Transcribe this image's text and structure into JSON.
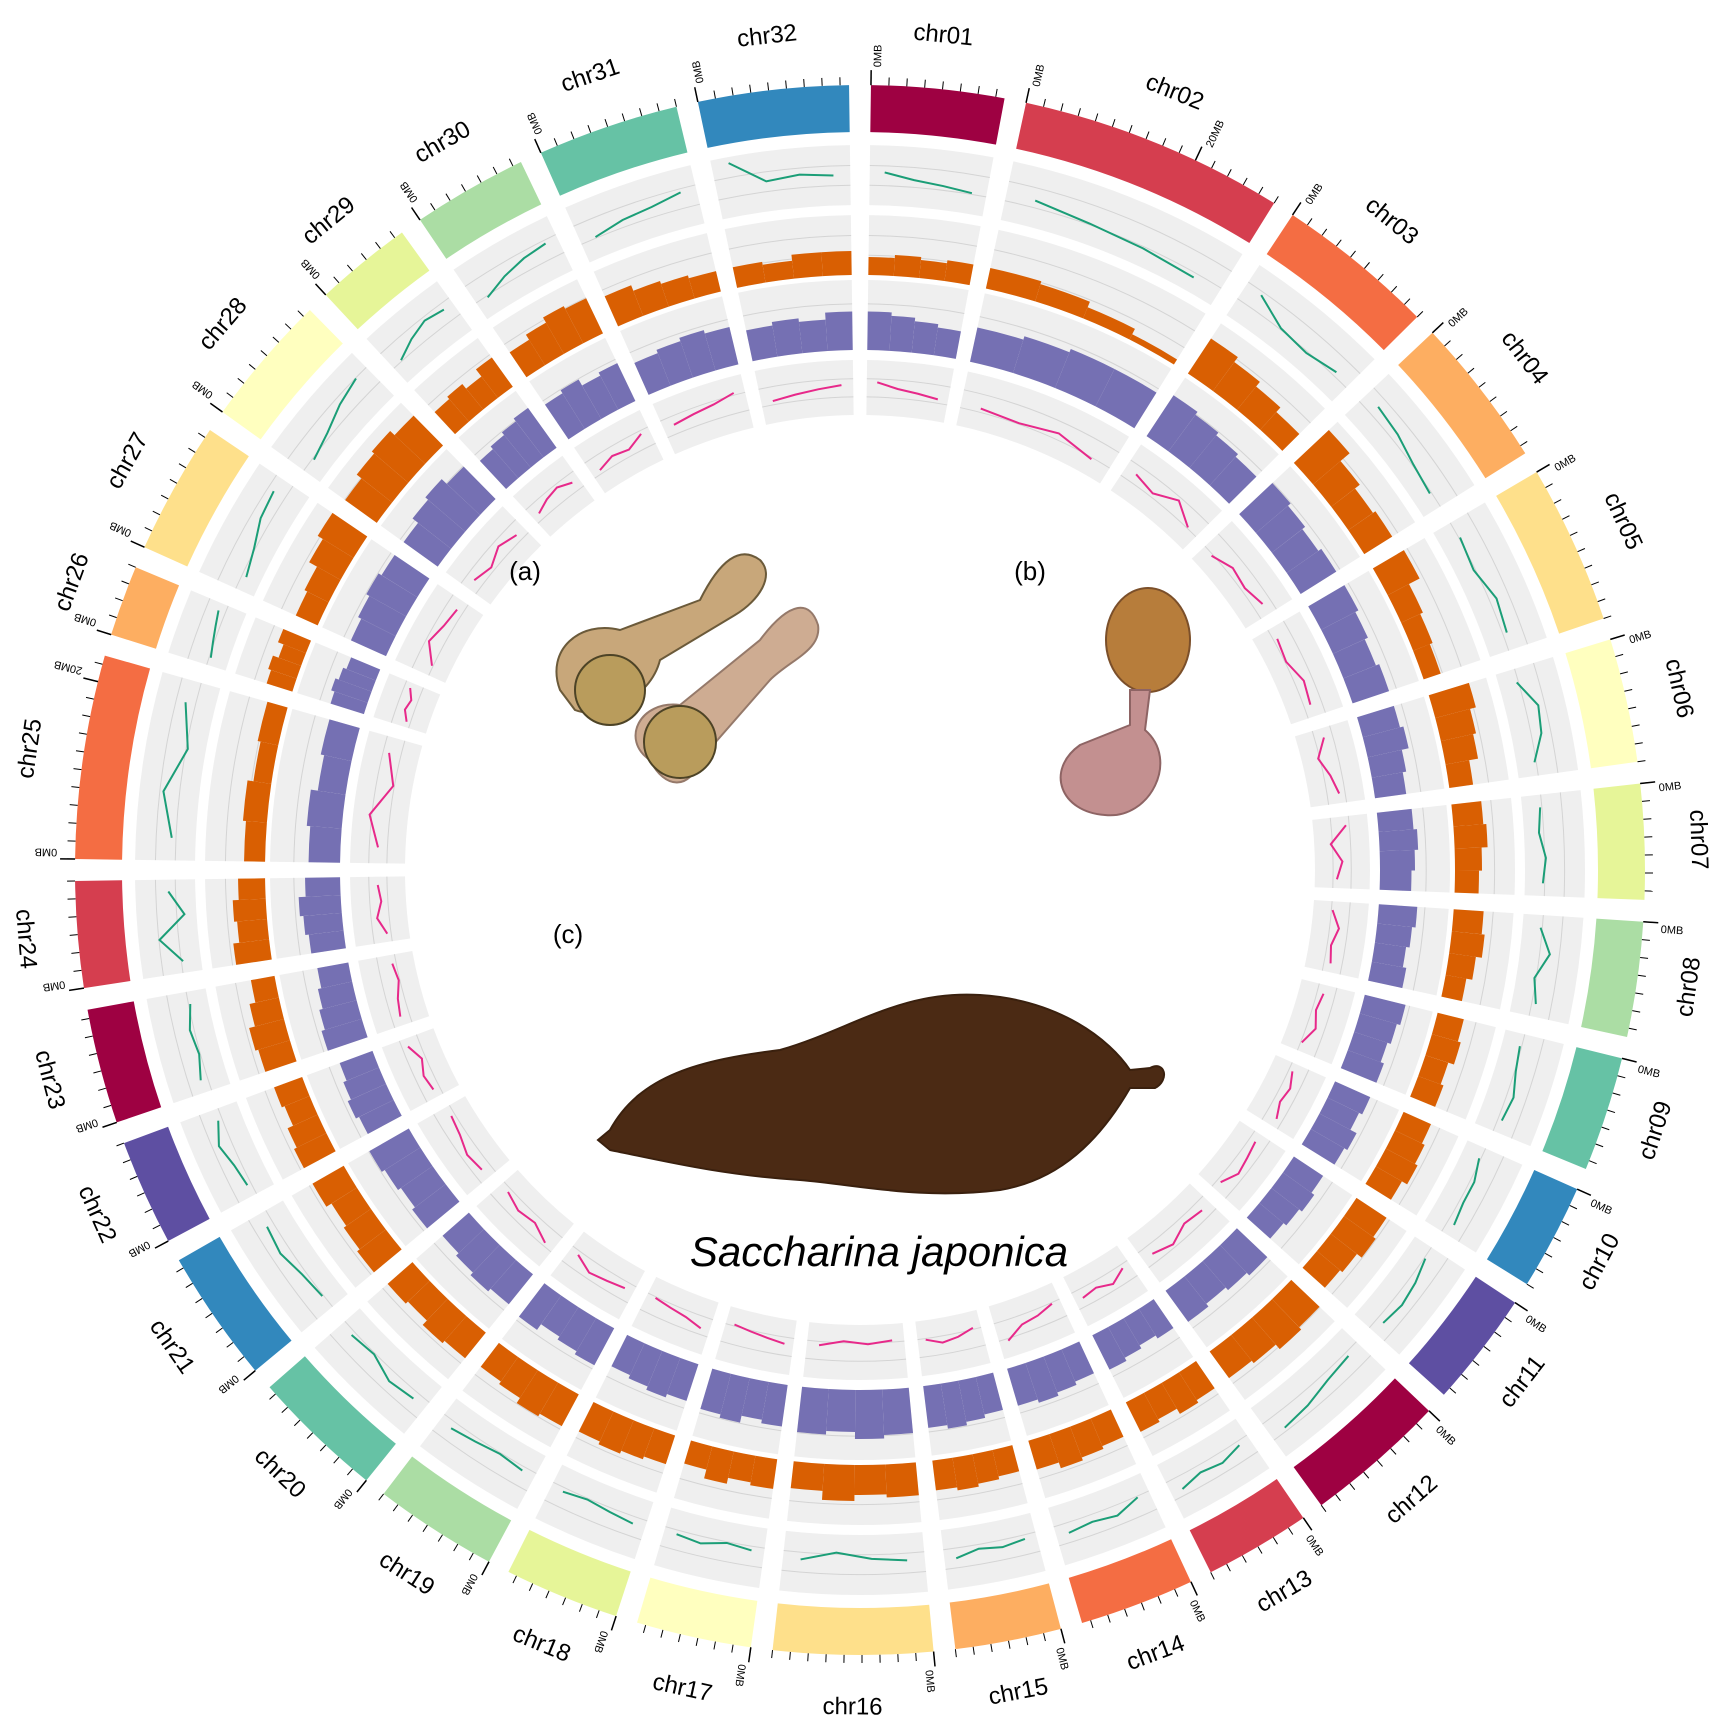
{
  "chart_data": {
    "type": "circos",
    "title": "Saccharina japonica",
    "annotations": [
      "(a)",
      "(b)",
      "(c)"
    ],
    "minor_tick_step": 2,
    "chromosomes": [
      {
        "name": "chr01",
        "length": 15,
        "color": "#9e0142",
        "ticks": [
          {
            "value": 0,
            "label": "0MB"
          }
        ]
      },
      {
        "name": "chr02",
        "length": 30,
        "color": "#d53e4f",
        "ticks": [
          {
            "value": 0,
            "label": "0MB"
          },
          {
            "value": 20,
            "label": "20MB"
          }
        ]
      },
      {
        "name": "chr03",
        "length": 18,
        "color": "#f46d43",
        "ticks": [
          {
            "value": 0,
            "label": "0MB"
          }
        ]
      },
      {
        "name": "chr04",
        "length": 17,
        "color": "#fdae61",
        "ticks": [
          {
            "value": 0,
            "label": "0MB"
          }
        ]
      },
      {
        "name": "chr05",
        "length": 18,
        "color": "#fee08b",
        "ticks": [
          {
            "value": 0,
            "label": "0MB"
          }
        ]
      },
      {
        "name": "chr06",
        "length": 14,
        "color": "#ffffbf",
        "ticks": [
          {
            "value": 0,
            "label": "0MB"
          }
        ]
      },
      {
        "name": "chr07",
        "length": 13,
        "color": "#e6f598",
        "ticks": [
          {
            "value": 0,
            "label": "0MB"
          }
        ]
      },
      {
        "name": "chr08",
        "length": 13,
        "color": "#abdda4",
        "ticks": [
          {
            "value": 0,
            "label": "0MB"
          }
        ]
      },
      {
        "name": "chr09",
        "length": 13,
        "color": "#66c2a5",
        "ticks": [
          {
            "value": 0,
            "label": "0MB"
          }
        ]
      },
      {
        "name": "chr10",
        "length": 12,
        "color": "#3288bd",
        "ticks": [
          {
            "value": 0,
            "label": "0MB"
          }
        ]
      },
      {
        "name": "chr11",
        "length": 13,
        "color": "#5e4fa2",
        "ticks": [
          {
            "value": 0,
            "label": "0MB"
          }
        ]
      },
      {
        "name": "chr12",
        "length": 16,
        "color": "#9e0142",
        "ticks": [
          {
            "value": 0,
            "label": "0MB"
          }
        ]
      },
      {
        "name": "chr13",
        "length": 12,
        "color": "#d53e4f",
        "ticks": [
          {
            "value": 0,
            "label": "0MB"
          }
        ]
      },
      {
        "name": "chr14",
        "length": 13,
        "color": "#f46d43",
        "ticks": [
          {
            "value": 0,
            "label": "0MB"
          }
        ]
      },
      {
        "name": "chr15",
        "length": 12,
        "color": "#fdae61",
        "ticks": [
          {
            "value": 0,
            "label": "0MB"
          }
        ]
      },
      {
        "name": "chr16",
        "length": 18,
        "color": "#fee08b",
        "ticks": [
          {
            "value": 0,
            "label": "0MB"
          }
        ]
      },
      {
        "name": "chr17",
        "length": 13,
        "color": "#ffffbf",
        "ticks": [
          {
            "value": 0,
            "label": "0MB"
          }
        ]
      },
      {
        "name": "chr18",
        "length": 13,
        "color": "#e6f598",
        "ticks": [
          {
            "value": 0,
            "label": "0MB"
          }
        ]
      },
      {
        "name": "chr19",
        "length": 14,
        "color": "#abdda4",
        "ticks": [
          {
            "value": 0,
            "label": "0MB"
          }
        ]
      },
      {
        "name": "chr20",
        "length": 15,
        "color": "#66c2a5",
        "ticks": [
          {
            "value": 0,
            "label": "0MB"
          }
        ]
      },
      {
        "name": "chr21",
        "length": 15,
        "color": "#3288bd",
        "ticks": [
          {
            "value": 0,
            "label": "0MB"
          }
        ]
      },
      {
        "name": "chr22",
        "length": 12,
        "color": "#5e4fa2",
        "ticks": [
          {
            "value": 0,
            "label": "0MB"
          }
        ]
      },
      {
        "name": "chr23",
        "length": 13,
        "color": "#9e0142",
        "ticks": [
          {
            "value": 0,
            "label": "0MB"
          }
        ]
      },
      {
        "name": "chr24",
        "length": 12,
        "color": "#d53e4f",
        "ticks": [
          {
            "value": 0,
            "label": "0MB"
          }
        ]
      },
      {
        "name": "chr25",
        "length": 23,
        "color": "#f46d43",
        "ticks": [
          {
            "value": 0,
            "label": "0MB"
          },
          {
            "value": 20,
            "label": "20MB"
          }
        ]
      },
      {
        "name": "chr26",
        "length": 8,
        "color": "#fdae61",
        "ticks": [
          {
            "value": 0,
            "label": "0MB"
          }
        ]
      },
      {
        "name": "chr27",
        "length": 15,
        "color": "#fee08b",
        "ticks": [
          {
            "value": 0,
            "label": "0MB"
          }
        ]
      },
      {
        "name": "chr28",
        "length": 15,
        "color": "#ffffbf",
        "ticks": [
          {
            "value": 0,
            "label": "0MB"
          }
        ]
      },
      {
        "name": "chr29",
        "length": 11,
        "color": "#e6f598",
        "ticks": [
          {
            "value": 0,
            "label": "0MB"
          }
        ]
      },
      {
        "name": "chr30",
        "length": 13,
        "color": "#abdda4",
        "ticks": [
          {
            "value": 0,
            "label": "0MB"
          }
        ]
      },
      {
        "name": "chr31",
        "length": 16,
        "color": "#66c2a5",
        "ticks": [
          {
            "value": 0,
            "label": "0MB"
          }
        ]
      },
      {
        "name": "chr32",
        "length": 17,
        "color": "#3288bd",
        "ticks": [
          {
            "value": 0,
            "label": "0MB"
          }
        ]
      }
    ],
    "tracks": [
      {
        "type": "line",
        "color": "#1b9e77",
        "ylim": [
          0,
          1
        ],
        "values": [
          [
            0.55,
            0.45,
            0.4,
            0.35
          ],
          [
            0.45,
            0.35,
            0.3,
            0.25
          ],
          [
            0.6,
            0.35,
            0.3,
            0.4
          ],
          [
            0.5,
            0.45,
            0.35,
            0.3
          ],
          [
            0.35,
            0.3,
            0.45,
            0.4
          ],
          [
            0.3,
            0.55,
            0.5,
            0.3
          ],
          [
            0.3,
            0.25,
            0.35,
            0.3
          ],
          [
            0.3,
            0.5,
            0.3,
            0.4
          ],
          [
            0.3,
            0.35,
            0.45,
            0.4
          ],
          [
            0.3,
            0.4,
            0.4,
            0.45
          ],
          [
            0.35,
            0.45,
            0.5,
            0.45
          ],
          [
            0.4,
            0.45,
            0.55,
            0.6
          ],
          [
            0.4,
            0.5,
            0.45,
            0.55
          ],
          [
            0.35,
            0.5,
            0.45,
            0.5
          ],
          [
            0.4,
            0.45,
            0.4,
            0.5
          ],
          [
            0.45,
            0.4,
            0.3,
            0.45
          ],
          [
            0.4,
            0.35,
            0.45,
            0.4
          ],
          [
            0.45,
            0.4,
            0.35,
            0.4
          ],
          [
            0.4,
            0.35,
            0.4,
            0.45
          ],
          [
            0.45,
            0.5,
            0.35,
            0.4
          ],
          [
            0.35,
            0.4,
            0.5,
            0.45
          ],
          [
            0.4,
            0.45,
            0.55,
            0.4
          ],
          [
            0.45,
            0.35,
            0.4,
            0.3
          ],
          [
            0.3,
            0.65,
            0.2,
            0.45
          ],
          [
            0.4,
            0.6,
            0.3,
            0.5
          ],
          [
            0.3,
            0.35,
            0.4,
            0.45
          ],
          [
            0.25,
            0.35,
            0.5,
            0.55
          ],
          [
            0.3,
            0.4,
            0.55,
            0.65
          ],
          [
            0.35,
            0.5,
            0.6,
            0.55
          ],
          [
            0.3,
            0.45,
            0.55,
            0.6
          ],
          [
            0.35,
            0.45,
            0.5,
            0.6
          ],
          [
            0.9,
            0.5,
            0.55,
            0.5
          ]
        ]
      },
      {
        "type": "bar",
        "color": "#d95f02",
        "ylim": [
          0,
          1
        ],
        "values": [
          [
            0.3,
            0.35,
            0.3,
            0.35
          ],
          [
            0.35,
            0.3,
            0.2,
            0.1
          ],
          [
            0.7,
            0.6,
            0.5,
            0.4
          ],
          [
            0.8,
            0.6,
            0.5,
            0.55
          ],
          [
            0.6,
            0.4,
            0.35,
            0.3
          ],
          [
            0.7,
            0.6,
            0.55,
            0.4
          ],
          [
            0.5,
            0.55,
            0.45,
            0.4
          ],
          [
            0.5,
            0.55,
            0.45,
            0.35
          ],
          [
            0.45,
            0.5,
            0.4,
            0.45
          ],
          [
            0.5,
            0.55,
            0.6,
            0.5
          ],
          [
            0.6,
            0.65,
            0.55,
            0.5
          ],
          [
            0.65,
            0.7,
            0.6,
            0.55
          ],
          [
            0.55,
            0.6,
            0.5,
            0.55
          ],
          [
            0.5,
            0.55,
            0.6,
            0.5
          ],
          [
            0.45,
            0.5,
            0.55,
            0.5
          ],
          [
            0.55,
            0.5,
            0.6,
            0.45
          ],
          [
            0.5,
            0.45,
            0.55,
            0.4
          ],
          [
            0.5,
            0.55,
            0.6,
            0.55
          ],
          [
            0.6,
            0.65,
            0.55,
            0.5
          ],
          [
            0.55,
            0.6,
            0.5,
            0.55
          ],
          [
            0.6,
            0.55,
            0.5,
            0.6
          ],
          [
            0.6,
            0.55,
            0.45,
            0.5
          ],
          [
            0.55,
            0.6,
            0.5,
            0.4
          ],
          [
            0.6,
            0.5,
            0.55,
            0.45
          ],
          [
            0.35,
            0.4,
            0.3,
            0.35
          ],
          [
            0.45,
            0.5,
            0.4,
            0.5
          ],
          [
            0.4,
            0.45,
            0.6,
            0.7
          ],
          [
            0.65,
            0.75,
            0.8,
            0.7
          ],
          [
            0.5,
            0.55,
            0.45,
            0.6
          ],
          [
            0.5,
            0.6,
            0.7,
            0.65
          ],
          [
            0.55,
            0.45,
            0.4,
            0.35
          ],
          [
            0.35,
            0.3,
            0.4,
            0.4
          ]
        ]
      },
      {
        "type": "bar",
        "color": "#7570b3",
        "ylim": [
          0,
          1
        ],
        "values": [
          [
            0.55,
            0.5,
            0.45,
            0.4
          ],
          [
            0.5,
            0.55,
            0.6,
            0.6
          ],
          [
            0.7,
            0.65,
            0.6,
            0.55
          ],
          [
            0.65,
            0.6,
            0.55,
            0.6
          ],
          [
            0.6,
            0.55,
            0.5,
            0.55
          ],
          [
            0.55,
            0.6,
            0.5,
            0.45
          ],
          [
            0.5,
            0.55,
            0.5,
            0.45
          ],
          [
            0.55,
            0.5,
            0.45,
            0.5
          ],
          [
            0.6,
            0.55,
            0.5,
            0.55
          ],
          [
            0.55,
            0.5,
            0.6,
            0.55
          ],
          [
            0.5,
            0.55,
            0.5,
            0.45
          ],
          [
            0.6,
            0.55,
            0.5,
            0.55
          ],
          [
            0.5,
            0.45,
            0.5,
            0.55
          ],
          [
            0.5,
            0.55,
            0.6,
            0.55
          ],
          [
            0.55,
            0.6,
            0.65,
            0.6
          ],
          [
            0.65,
            0.7,
            0.6,
            0.65
          ],
          [
            0.6,
            0.55,
            0.65,
            0.6
          ],
          [
            0.55,
            0.6,
            0.55,
            0.5
          ],
          [
            0.6,
            0.55,
            0.5,
            0.6
          ],
          [
            0.55,
            0.6,
            0.55,
            0.5
          ],
          [
            0.6,
            0.55,
            0.6,
            0.65
          ],
          [
            0.55,
            0.6,
            0.55,
            0.5
          ],
          [
            0.6,
            0.55,
            0.5,
            0.45
          ],
          [
            0.5,
            0.55,
            0.6,
            0.5
          ],
          [
            0.45,
            0.5,
            0.4,
            0.45
          ],
          [
            0.5,
            0.55,
            0.5,
            0.45
          ],
          [
            0.55,
            0.6,
            0.65,
            0.6
          ],
          [
            0.6,
            0.7,
            0.75,
            0.65
          ],
          [
            0.55,
            0.6,
            0.65,
            0.7
          ],
          [
            0.6,
            0.65,
            0.55,
            0.6
          ],
          [
            0.5,
            0.55,
            0.6,
            0.55
          ],
          [
            0.45,
            0.5,
            0.45,
            0.55
          ]
        ]
      },
      {
        "type": "line",
        "color": "#e7298a",
        "ylim": [
          0,
          1
        ],
        "values": [
          [
            0.6,
            0.5,
            0.45,
            0.4
          ],
          [
            0.4,
            0.35,
            0.45,
            0.3
          ],
          [
            0.5,
            0.4,
            0.6,
            0.35
          ],
          [
            0.3,
            0.45,
            0.4,
            0.5
          ],
          [
            0.4,
            0.35,
            0.5,
            0.45
          ],
          [
            0.5,
            0.3,
            0.45,
            0.55
          ],
          [
            0.6,
            0.3,
            0.5,
            0.4
          ],
          [
            0.35,
            0.5,
            0.4,
            0.45
          ],
          [
            0.45,
            0.4,
            0.5,
            0.35
          ],
          [
            0.4,
            0.5,
            0.45,
            0.55
          ],
          [
            0.45,
            0.5,
            0.55,
            0.4
          ],
          [
            0.5,
            0.45,
            0.6,
            0.5
          ],
          [
            0.4,
            0.55,
            0.45,
            0.5
          ],
          [
            0.35,
            0.45,
            0.5,
            0.7
          ],
          [
            0.3,
            0.4,
            0.45,
            0.35
          ],
          [
            0.3,
            0.35,
            0.3,
            0.4
          ],
          [
            0.45,
            0.4,
            0.35,
            0.3
          ],
          [
            0.55,
            0.45,
            0.4,
            0.35
          ],
          [
            0.45,
            0.5,
            0.55,
            0.4
          ],
          [
            0.6,
            0.45,
            0.5,
            0.4
          ],
          [
            0.5,
            0.55,
            0.45,
            0.4
          ],
          [
            0.45,
            0.5,
            0.4,
            0.55
          ],
          [
            0.5,
            0.45,
            0.35,
            0.4
          ],
          [
            0.4,
            0.55,
            0.45,
            0.5
          ],
          [
            0.5,
            0.7,
            0.35,
            0.55
          ],
          [
            0.4,
            0.5,
            0.45,
            0.55
          ],
          [
            0.35,
            0.6,
            0.5,
            0.45
          ],
          [
            0.5,
            0.4,
            0.55,
            0.45
          ],
          [
            0.45,
            0.55,
            0.6,
            0.5
          ],
          [
            0.4,
            0.5,
            0.45,
            0.6
          ],
          [
            0.5,
            0.55,
            0.6,
            0.7
          ],
          [
            0.4,
            0.45,
            0.5,
            0.55
          ]
        ]
      }
    ]
  }
}
